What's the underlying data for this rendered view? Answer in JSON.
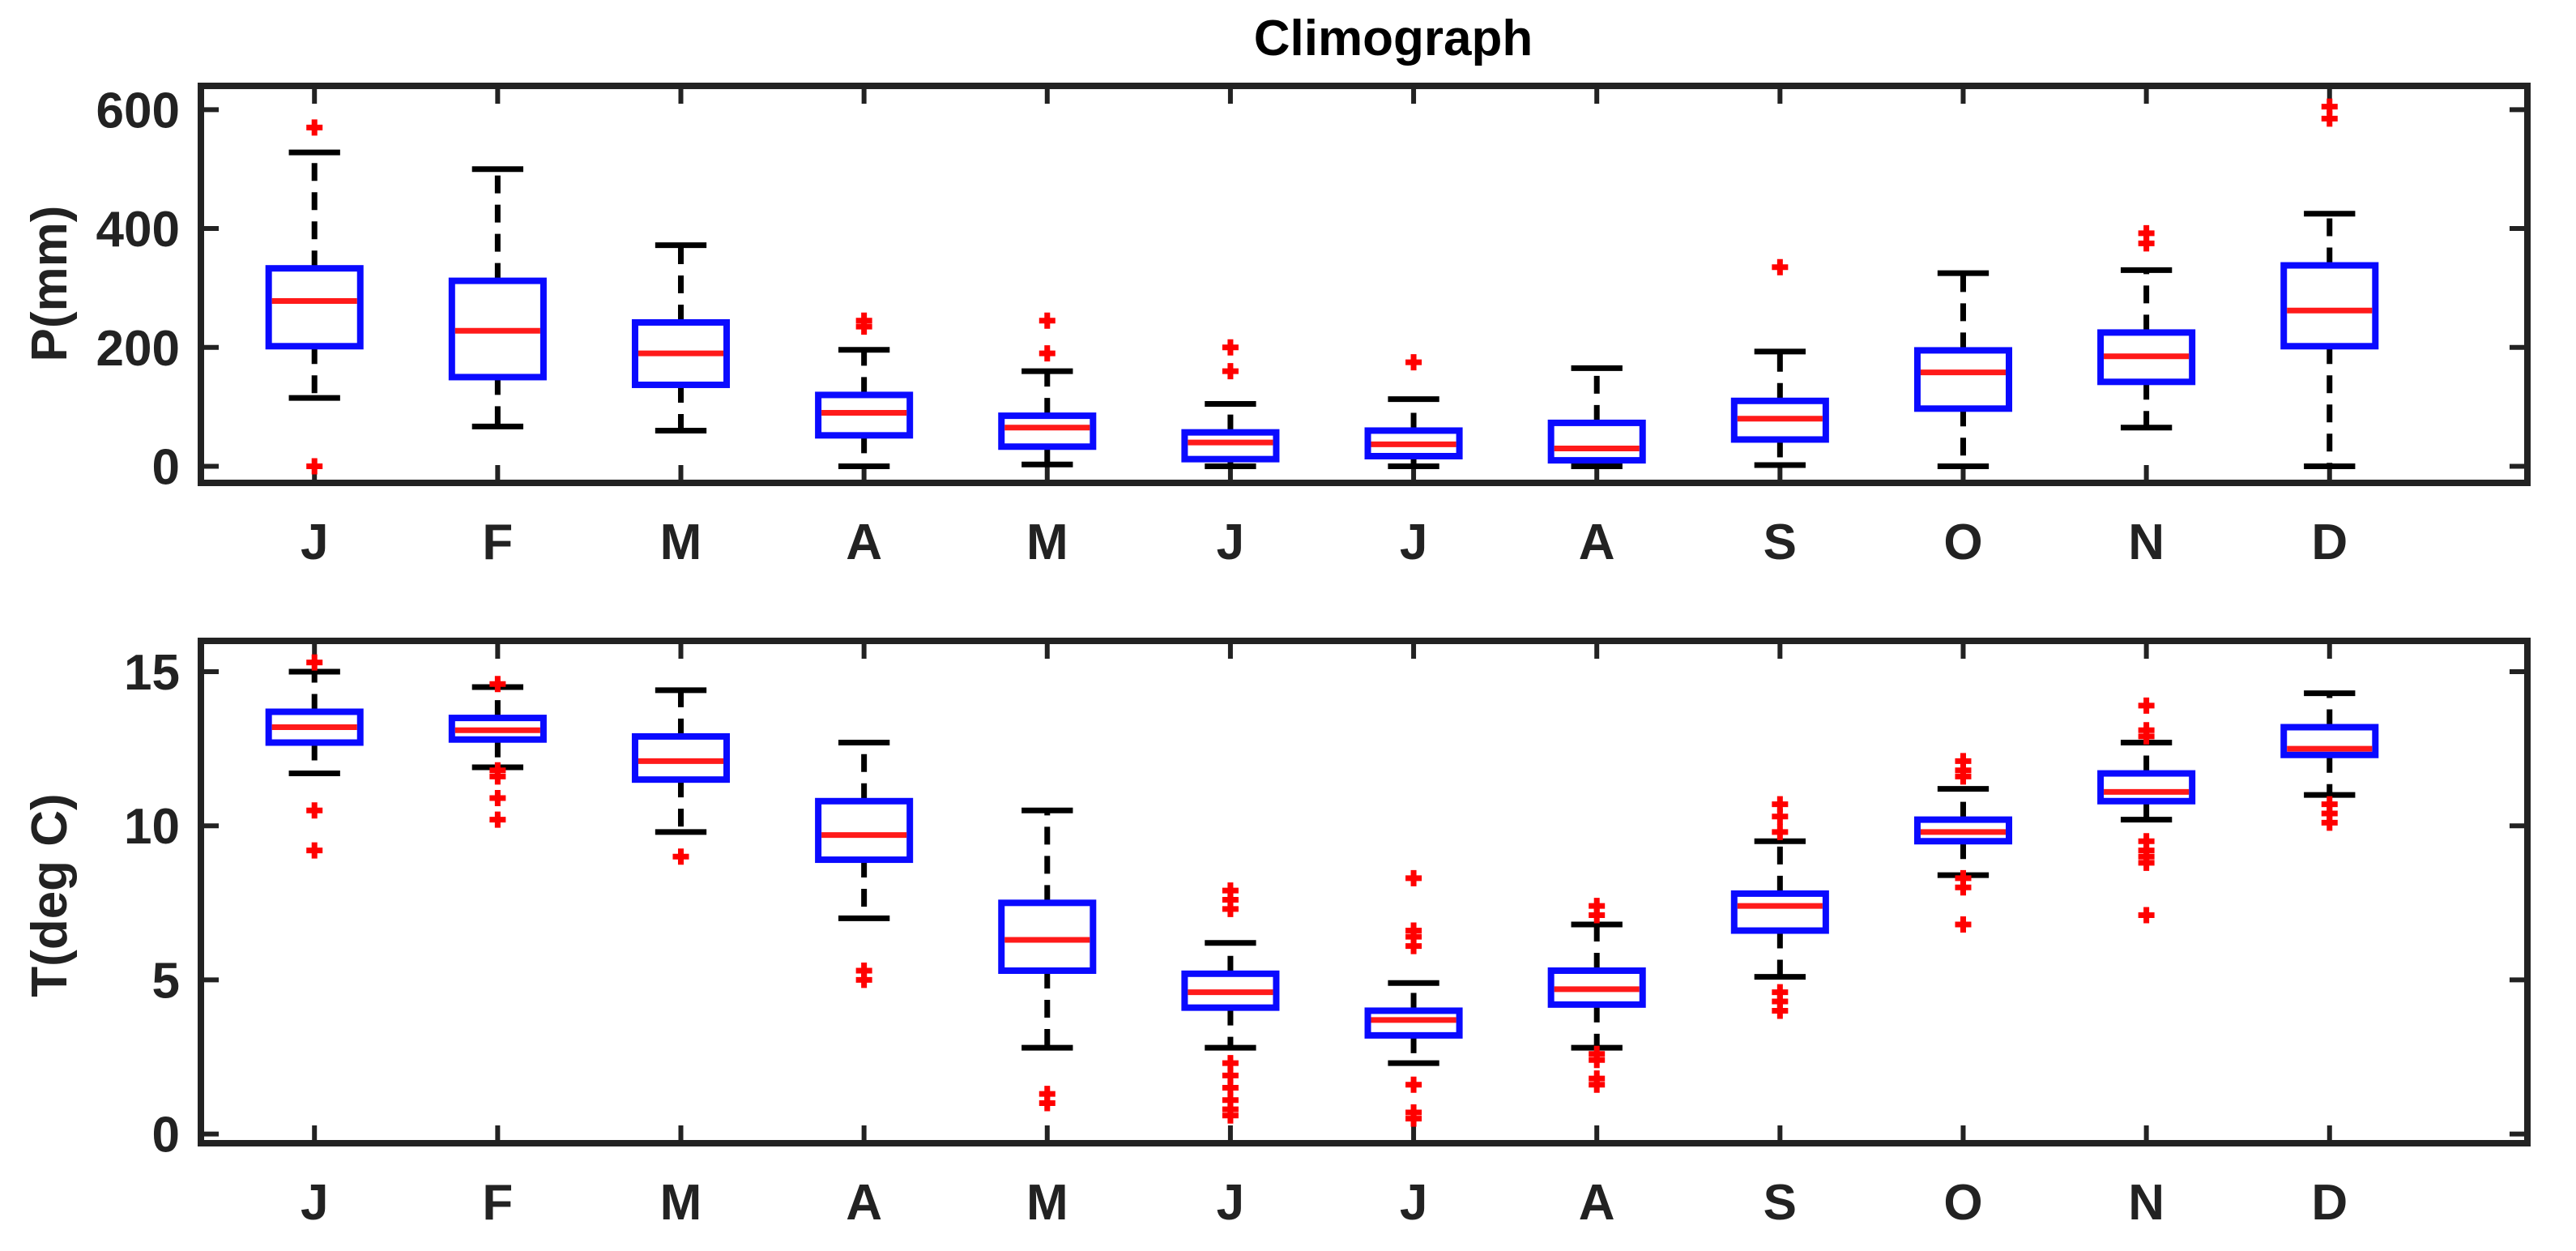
{
  "chart_data": [
    {
      "type": "boxplot",
      "title": "Climograph",
      "ylabel": "P(mm)",
      "xlabel": "",
      "categories": [
        "J",
        "F",
        "M",
        "A",
        "M",
        "J",
        "J",
        "A",
        "S",
        "O",
        "N",
        "D"
      ],
      "ylim": [
        -28,
        640
      ],
      "yticks": [
        0,
        200,
        400,
        600
      ],
      "boxes": [
        {
          "whislo": 115,
          "q1": 202,
          "med": 278,
          "q3": 333,
          "whishi": 528,
          "outliers": [
            570,
            0
          ]
        },
        {
          "whislo": 67,
          "q1": 150,
          "med": 228,
          "q3": 312,
          "whishi": 500,
          "outliers": []
        },
        {
          "whislo": 60,
          "q1": 137,
          "med": 190,
          "q3": 242,
          "whishi": 372,
          "outliers": []
        },
        {
          "whislo": 0,
          "q1": 52,
          "med": 90,
          "q3": 120,
          "whishi": 196,
          "outliers": [
            235,
            245
          ]
        },
        {
          "whislo": 3,
          "q1": 33,
          "med": 65,
          "q3": 85,
          "whishi": 160,
          "outliers": [
            190,
            245
          ]
        },
        {
          "whislo": 0,
          "q1": 12,
          "med": 40,
          "q3": 57,
          "whishi": 105,
          "outliers": [
            160,
            200
          ]
        },
        {
          "whislo": 0,
          "q1": 17,
          "med": 37,
          "q3": 60,
          "whishi": 113,
          "outliers": [
            175
          ]
        },
        {
          "whislo": 0,
          "q1": 10,
          "med": 30,
          "q3": 73,
          "whishi": 165,
          "outliers": []
        },
        {
          "whislo": 2,
          "q1": 45,
          "med": 80,
          "q3": 110,
          "whishi": 193,
          "outliers": [
            335
          ]
        },
        {
          "whislo": 0,
          "q1": 97,
          "med": 158,
          "q3": 195,
          "whishi": 325,
          "outliers": []
        },
        {
          "whislo": 65,
          "q1": 142,
          "med": 185,
          "q3": 225,
          "whishi": 330,
          "outliers": [
            375,
            392
          ]
        },
        {
          "whislo": 0,
          "q1": 202,
          "med": 262,
          "q3": 338,
          "whishi": 425,
          "outliers": [
            585,
            605
          ]
        }
      ]
    },
    {
      "type": "boxplot",
      "title": "",
      "ylabel": "T(deg C)",
      "xlabel": "",
      "categories": [
        "J",
        "F",
        "M",
        "A",
        "M",
        "J",
        "J",
        "A",
        "S",
        "O",
        "N",
        "D"
      ],
      "ylim": [
        -0.3,
        16.0
      ],
      "yticks": [
        0,
        5,
        10,
        15
      ],
      "boxes": [
        {
          "whislo": 11.7,
          "q1": 12.7,
          "med": 13.2,
          "q3": 13.7,
          "whishi": 15.0,
          "outliers": [
            15.3,
            10.5,
            9.2
          ]
        },
        {
          "whislo": 11.9,
          "q1": 12.8,
          "med": 13.1,
          "q3": 13.5,
          "whishi": 14.5,
          "outliers": [
            14.6,
            11.8,
            11.6,
            10.9,
            10.2
          ]
        },
        {
          "whislo": 9.8,
          "q1": 11.5,
          "med": 12.1,
          "q3": 12.9,
          "whishi": 14.4,
          "outliers": [
            9.0
          ]
        },
        {
          "whislo": 7.0,
          "q1": 8.9,
          "med": 9.7,
          "q3": 10.8,
          "whishi": 12.7,
          "outliers": [
            5.3,
            5.0
          ]
        },
        {
          "whislo": 2.8,
          "q1": 5.3,
          "med": 6.3,
          "q3": 7.5,
          "whishi": 10.5,
          "outliers": [
            1.3,
            1.0
          ]
        },
        {
          "whislo": 2.8,
          "q1": 4.1,
          "med": 4.6,
          "q3": 5.2,
          "whishi": 6.2,
          "outliers": [
            7.9,
            7.6,
            7.3,
            2.3,
            1.9,
            1.5,
            1.1,
            0.8,
            0.6
          ]
        },
        {
          "whislo": 2.3,
          "q1": 3.2,
          "med": 3.7,
          "q3": 4.0,
          "whishi": 4.9,
          "outliers": [
            8.3,
            6.6,
            6.4,
            6.1,
            1.6,
            0.7,
            0.5
          ]
        },
        {
          "whislo": 2.8,
          "q1": 4.2,
          "med": 4.7,
          "q3": 5.3,
          "whishi": 6.8,
          "outliers": [
            7.4,
            7.1,
            2.6,
            2.4,
            1.8,
            1.6
          ]
        },
        {
          "whislo": 5.1,
          "q1": 6.6,
          "med": 7.4,
          "q3": 7.8,
          "whishi": 9.5,
          "outliers": [
            10.7,
            10.3,
            9.8,
            4.6,
            4.3,
            4.0
          ]
        },
        {
          "whislo": 8.4,
          "q1": 9.5,
          "med": 9.8,
          "q3": 10.2,
          "whishi": 11.2,
          "outliers": [
            12.1,
            11.8,
            11.6,
            8.3,
            8.0,
            6.8
          ]
        },
        {
          "whislo": 10.2,
          "q1": 10.8,
          "med": 11.1,
          "q3": 11.7,
          "whishi": 12.7,
          "outliers": [
            13.9,
            13.1,
            12.9,
            9.5,
            9.2,
            9.0,
            8.8,
            7.1
          ]
        },
        {
          "whislo": 11.0,
          "q1": 12.3,
          "med": 12.5,
          "q3": 13.2,
          "whishi": 14.3,
          "outliers": [
            10.7,
            10.4,
            10.1
          ]
        }
      ]
    }
  ],
  "colors": {
    "box": "#0a0aff",
    "median": "#ff1a1a",
    "whisker": "#000000",
    "outlier": "#ff0000",
    "axis": "#222222"
  }
}
